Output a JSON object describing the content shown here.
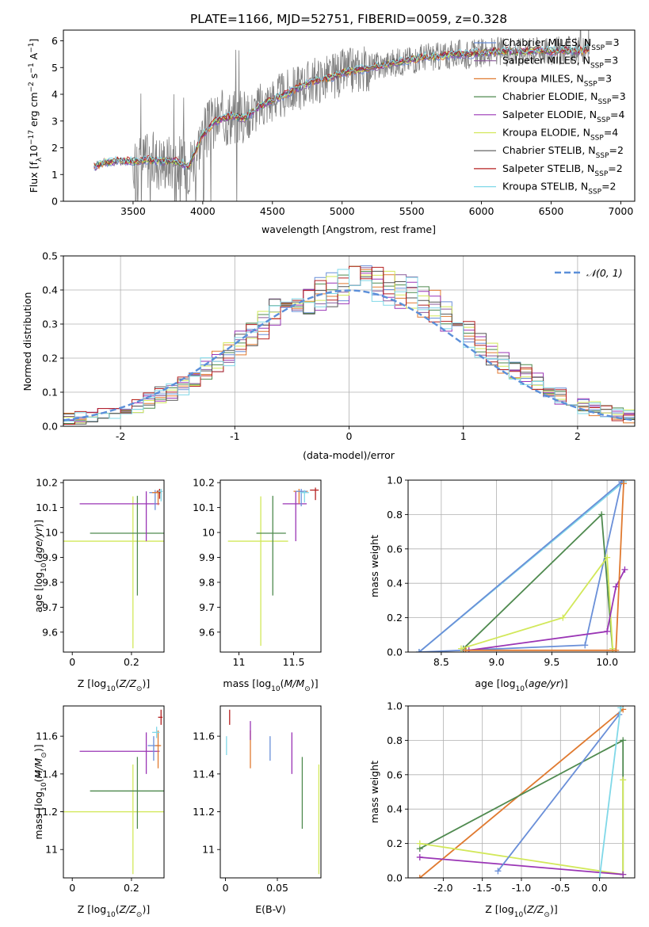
{
  "colors": {
    "Chabrier MILES": "#6a8fd8",
    "Salpeter MILES": "#8a5a9a",
    "Kroupa MILES": "#e07a30",
    "Chabrier ELODIE": "#4f8a4f",
    "Salpeter ELODIE": "#9a35b5",
    "Kroupa ELODIE": "#d2e85a",
    "Chabrier STELIB": "#555555",
    "Salpeter STELIB": "#b52020",
    "Kroupa STELIB": "#80d8e8",
    "data": "#808080",
    "normal": "#5b8fd9"
  },
  "chart_data": [
    {
      "id": "spectrum",
      "type": "line",
      "title": "PLATE=1166, MJD=52751, FIBERID=0059, z=0.328",
      "xlabel": "wavelength [Angstrom, rest frame]",
      "ylabel": "Flux [fλ10⁻¹⁷ erg cm⁻² s⁻¹ A⁻¹]",
      "xlim": [
        3000,
        7100
      ],
      "ylim": [
        0,
        6.4
      ],
      "xticks": [
        3500,
        4000,
        4500,
        5000,
        5500,
        6000,
        6500,
        7000
      ],
      "yticks": [
        0,
        1,
        2,
        3,
        4,
        5,
        6
      ],
      "legend_position": "upper right",
      "model_continuum": {
        "x": [
          3220,
          3300,
          3400,
          3500,
          3600,
          3700,
          3800,
          3900,
          3950,
          4000,
          4100,
          4200,
          4300,
          4400,
          4500,
          4600,
          4700,
          4800,
          4900,
          5000,
          5100,
          5200,
          5300,
          5400,
          5500,
          5600,
          5700,
          5800,
          5900,
          6000,
          6100,
          6200,
          6300,
          6400,
          6500,
          6600,
          6700,
          6780
        ],
        "y": [
          1.3,
          1.45,
          1.5,
          1.5,
          1.55,
          1.5,
          1.5,
          1.3,
          1.9,
          2.5,
          3.0,
          3.2,
          3.1,
          3.5,
          3.8,
          4.0,
          4.3,
          4.5,
          4.6,
          4.8,
          4.9,
          5.0,
          5.1,
          5.2,
          5.3,
          5.4,
          5.4,
          5.5,
          5.5,
          5.55,
          5.6,
          5.6,
          5.6,
          5.65,
          5.6,
          5.65,
          5.6,
          5.7
        ]
      },
      "series": [
        {
          "name": "Chabrier MILES, N$_{SSP}$=3",
          "label": "Chabrier MILES, N",
          "n": "3",
          "color_key": "Chabrier MILES"
        },
        {
          "name": "Salpeter MILES, N$_{SSP}$=3",
          "label": "Salpeter MILES, N",
          "n": "3",
          "color_key": "Salpeter MILES"
        },
        {
          "name": "Kroupa MILES, N$_{SSP}$=3",
          "label": "Kroupa MILES, N",
          "n": "3",
          "color_key": "Kroupa MILES"
        },
        {
          "name": "Chabrier ELODIE, N$_{SSP}$=3",
          "label": "Chabrier ELODIE, N",
          "n": "3",
          "color_key": "Chabrier ELODIE"
        },
        {
          "name": "Salpeter ELODIE, N$_{SSP}$=4",
          "label": "Salpeter ELODIE, N",
          "n": "4",
          "color_key": "Salpeter ELODIE"
        },
        {
          "name": "Kroupa ELODIE, N$_{SSP}$=4",
          "label": "Kroupa ELODIE, N",
          "n": "4",
          "color_key": "Kroupa ELODIE"
        },
        {
          "name": "Chabrier STELIB, N$_{SSP}$=2",
          "label": "Chabrier STELIB, N",
          "n": "2",
          "color_key": "Chabrier STELIB"
        },
        {
          "name": "Salpeter STELIB, N$_{SSP}$=2",
          "label": "Salpeter STELIB, N",
          "n": "2",
          "color_key": "Salpeter STELIB"
        },
        {
          "name": "Kroupa STELIB, N$_{SSP}$=2",
          "label": "Kroupa STELIB, N",
          "n": "2",
          "color_key": "Kroupa STELIB"
        }
      ]
    },
    {
      "id": "residuals",
      "type": "bar",
      "xlabel": "(data-model)/error",
      "ylabel": "Normed distribution",
      "xlim": [
        -2.5,
        2.5
      ],
      "ylim": [
        0,
        0.5
      ],
      "xticks": [
        -2,
        -1,
        0,
        1,
        2
      ],
      "yticks": [
        0.0,
        0.1,
        0.2,
        0.3,
        0.4,
        0.5
      ],
      "bin_width": 0.1,
      "grid": true,
      "legend": {
        "label": "𝒩(0, 1)",
        "position": "upper right"
      },
      "reference_curve": "normal distribution N(0,1), mean 0, sigma 1, peak 0.399",
      "histogram_envelope": {
        "x": [
          -2.5,
          -2.4,
          -2.3,
          -2.2,
          -2.1,
          -2.0,
          -1.9,
          -1.8,
          -1.7,
          -1.6,
          -1.5,
          -1.4,
          -1.3,
          -1.2,
          -1.1,
          -1.0,
          -0.9,
          -0.8,
          -0.7,
          -0.6,
          -0.5,
          -0.4,
          -0.3,
          -0.2,
          -0.1,
          0.0,
          0.1,
          0.2,
          0.3,
          0.4,
          0.5,
          0.6,
          0.7,
          0.8,
          0.9,
          1.0,
          1.1,
          1.2,
          1.3,
          1.4,
          1.5,
          1.6,
          1.7,
          1.8,
          1.9,
          2.0,
          2.1,
          2.2,
          2.3,
          2.4
        ],
        "y": [
          0.02,
          0.025,
          0.03,
          0.035,
          0.04,
          0.05,
          0.06,
          0.075,
          0.09,
          0.1,
          0.12,
          0.14,
          0.17,
          0.19,
          0.21,
          0.24,
          0.27,
          0.3,
          0.33,
          0.35,
          0.37,
          0.38,
          0.39,
          0.4,
          0.41,
          0.42,
          0.42,
          0.42,
          0.41,
          0.4,
          0.39,
          0.37,
          0.35,
          0.32,
          0.3,
          0.27,
          0.24,
          0.21,
          0.19,
          0.17,
          0.15,
          0.13,
          0.11,
          0.09,
          0.075,
          0.06,
          0.05,
          0.04,
          0.035,
          0.03
        ]
      }
    },
    {
      "id": "age-vs-z",
      "type": "scatter",
      "xlabel": "Z [log₁₀(Z/Z⊙)]",
      "ylabel": "age  [log₁₀(age/yr)]",
      "xlim": [
        -0.03,
        0.31
      ],
      "ylim": [
        9.52,
        10.21
      ],
      "xticks": [
        0.0,
        0.2
      ],
      "yticks": [
        9.6,
        9.7,
        9.8,
        9.9,
        10.0,
        10.1,
        10.2
      ],
      "errorbars": [
        {
          "series": "Kroupa ELODIE",
          "x": 0.205,
          "xerr": [
            0.3,
            0.3
          ],
          "y": 9.965,
          "yerr": [
            0.43,
            0.18
          ]
        },
        {
          "series": "Chabrier ELODIE",
          "x": 0.22,
          "xerr": [
            0.16,
            0.09
          ],
          "y": 9.997,
          "yerr": [
            0.25,
            0.15
          ]
        },
        {
          "series": "Salpeter ELODIE",
          "x": 0.25,
          "xerr": [
            0.225,
            0.045
          ],
          "y": 10.115,
          "yerr": [
            0.15,
            0.05
          ]
        },
        {
          "series": "Chabrier MILES",
          "x": 0.28,
          "xerr": [
            0.02,
            0.02
          ],
          "y": 10.16,
          "yerr": [
            0.07,
            0.01
          ]
        },
        {
          "series": "Kroupa MILES",
          "x": 0.29,
          "xerr": [
            0.02,
            0.01
          ],
          "y": 10.16,
          "yerr": [
            0.05,
            0.01
          ]
        },
        {
          "series": "Salpeter STELIB",
          "x": 0.295,
          "xerr": [
            0.01,
            0.01
          ],
          "y": 10.165,
          "yerr": [
            0.03,
            0.01
          ]
        },
        {
          "series": "Kroupa STELIB",
          "x": 0.3,
          "xerr": [
            0.01,
            0.005
          ],
          "y": 10.165,
          "yerr": [
            0.04,
            0.01
          ]
        }
      ]
    },
    {
      "id": "age-vs-mass",
      "type": "scatter",
      "xlabel": "mass [log₁₀(M/M⊙)]",
      "ylabel": "",
      "xlim": [
        10.83,
        11.75
      ],
      "ylim": [
        9.52,
        10.21
      ],
      "xticks": [
        11.0,
        11.5
      ],
      "yticks": [
        9.6,
        9.7,
        9.8,
        9.9,
        10.0,
        10.1,
        10.2
      ],
      "errorbars": [
        {
          "series": "Kroupa ELODIE",
          "x": 11.2,
          "xerr": [
            0.3,
            0.25
          ],
          "y": 9.965,
          "yerr": [
            0.42,
            0.18
          ]
        },
        {
          "series": "Chabrier ELODIE",
          "x": 11.31,
          "xerr": [
            0.15,
            0.12
          ],
          "y": 9.997,
          "yerr": [
            0.25,
            0.15
          ]
        },
        {
          "series": "Salpeter ELODIE",
          "x": 11.52,
          "xerr": [
            0.12,
            0.1
          ],
          "y": 10.115,
          "yerr": [
            0.15,
            0.05
          ]
        },
        {
          "series": "Kroupa MILES",
          "x": 11.55,
          "xerr": [
            0.05,
            0.08
          ],
          "y": 10.165,
          "yerr": [
            0.05,
            0.01
          ]
        },
        {
          "series": "Chabrier MILES",
          "x": 11.57,
          "xerr": [
            0.05,
            0.05
          ],
          "y": 10.165,
          "yerr": [
            0.06,
            0.01
          ]
        },
        {
          "series": "Salpeter STELIB",
          "x": 11.7,
          "xerr": [
            0.05,
            0.03
          ],
          "y": 10.17,
          "yerr": [
            0.04,
            0.01
          ]
        },
        {
          "series": "Kroupa STELIB",
          "x": 11.6,
          "xerr": [
            0.04,
            0.04
          ],
          "y": 10.16,
          "yerr": [
            0.04,
            0.01
          ]
        }
      ]
    },
    {
      "id": "mass-weight-vs-age",
      "type": "line",
      "xlabel": "age  [log₁₀(age/yr)]",
      "ylabel": "mass weight",
      "xlim": [
        8.2,
        10.25
      ],
      "ylim": [
        0.0,
        1.0
      ],
      "xticks": [
        8.5,
        9.0,
        9.5,
        10.0
      ],
      "yticks": [
        0.0,
        0.2,
        0.4,
        0.6,
        0.8,
        1.0
      ],
      "grid": true,
      "series": [
        {
          "name": "Kroupa STELIB",
          "points": [
            [
              8.3,
              0.0
            ],
            [
              10.15,
              0.99
            ]
          ]
        },
        {
          "name": "Chabrier MILES",
          "points": [
            [
              8.3,
              0.0
            ],
            [
              10.13,
              0.99
            ],
            [
              9.8,
              0.04
            ],
            [
              8.3,
              0.0
            ]
          ]
        },
        {
          "name": "Chabrier ELODIE",
          "points": [
            [
              8.7,
              0.02
            ],
            [
              9.95,
              0.8
            ],
            [
              10.05,
              0.01
            ]
          ]
        },
        {
          "name": "Kroupa ELODIE",
          "points": [
            [
              8.68,
              0.02
            ],
            [
              9.6,
              0.2
            ],
            [
              10.0,
              0.55
            ],
            [
              10.05,
              0.02
            ]
          ]
        },
        {
          "name": "Salpeter ELODIE",
          "points": [
            [
              8.75,
              0.01
            ],
            [
              10.0,
              0.12
            ],
            [
              10.08,
              0.38
            ],
            [
              10.16,
              0.48
            ]
          ]
        },
        {
          "name": "Kroupa MILES",
          "points": [
            [
              8.72,
              0.01
            ],
            [
              10.08,
              0.01
            ],
            [
              10.15,
              0.98
            ]
          ]
        }
      ]
    },
    {
      "id": "mass-vs-z",
      "type": "scatter",
      "xlabel": "Z [log₁₀(Z/Z⊙)]",
      "ylabel": "mass [log₁₀(M/M⊙)]",
      "xlim": [
        -0.03,
        0.31
      ],
      "ylim": [
        10.85,
        11.76
      ],
      "xticks": [
        0.0,
        0.2
      ],
      "yticks": [
        11.0,
        11.2,
        11.4,
        11.6
      ],
      "errorbars": [
        {
          "series": "Kroupa ELODIE",
          "x": 0.205,
          "xerr": [
            0.3,
            0.3
          ],
          "y": 11.2,
          "yerr": [
            0.33,
            0.25
          ]
        },
        {
          "series": "Chabrier ELODIE",
          "x": 0.22,
          "xerr": [
            0.16,
            0.09
          ],
          "y": 11.31,
          "yerr": [
            0.2,
            0.18
          ]
        },
        {
          "series": "Salpeter ELODIE",
          "x": 0.25,
          "xerr": [
            0.225,
            0.045
          ],
          "y": 11.52,
          "yerr": [
            0.12,
            0.1
          ]
        },
        {
          "series": "Chabrier MILES",
          "x": 0.275,
          "xerr": [
            0.02,
            0.02
          ],
          "y": 11.55,
          "yerr": [
            0.08,
            0.05
          ]
        },
        {
          "series": "Kroupa MILES",
          "x": 0.29,
          "xerr": [
            0.01,
            0.01
          ],
          "y": 11.55,
          "yerr": [
            0.12,
            0.08
          ]
        },
        {
          "series": "Salpeter STELIB",
          "x": 0.3,
          "xerr": [
            0.01,
            0.005
          ],
          "y": 11.7,
          "yerr": [
            0.04,
            0.04
          ]
        },
        {
          "series": "Kroupa STELIB",
          "x": 0.285,
          "xerr": [
            0.015,
            0.01
          ],
          "y": 11.62,
          "yerr": [
            0.03,
            0.03
          ]
        }
      ]
    },
    {
      "id": "mass-vs-ebv",
      "type": "scatter",
      "xlabel": "E(B-V)",
      "ylabel": "",
      "xlim": [
        -0.005,
        0.092
      ],
      "ylim": [
        10.85,
        11.76
      ],
      "xticks": [
        0.0,
        0.05
      ],
      "yticks": [
        11.0,
        11.2,
        11.4,
        11.6
      ],
      "errorbars": [
        {
          "series": "Kroupa ELODIE",
          "x": 0.09,
          "y": 11.2,
          "yerr": [
            0.33,
            0.25
          ]
        },
        {
          "series": "Chabrier ELODIE",
          "x": 0.074,
          "y": 11.31,
          "yerr": [
            0.2,
            0.18
          ]
        },
        {
          "series": "Salpeter ELODIE",
          "x": 0.064,
          "y": 11.52,
          "yerr": [
            0.12,
            0.1
          ]
        },
        {
          "series": "Chabrier MILES",
          "x": 0.043,
          "y": 11.55,
          "yerr": [
            0.08,
            0.05
          ]
        },
        {
          "series": "Kroupa MILES",
          "x": 0.024,
          "y": 11.55,
          "yerr": [
            0.12,
            0.08
          ]
        },
        {
          "series": "Salpeter ELODIE",
          "x": 0.024,
          "y": 11.63,
          "yerr": [
            0.05,
            0.05
          ]
        },
        {
          "series": "Salpeter STELIB",
          "x": 0.004,
          "y": 11.7,
          "yerr": [
            0.04,
            0.04
          ]
        },
        {
          "series": "Kroupa STELIB",
          "x": 0.001,
          "y": 11.55,
          "yerr": [
            0.05,
            0.05
          ]
        }
      ]
    },
    {
      "id": "mass-weight-vs-z",
      "type": "line",
      "xlabel": "Z [log₁₀(Z/Z⊙)]",
      "ylabel": "mass weight",
      "xlim": [
        -2.45,
        0.45
      ],
      "ylim": [
        0.0,
        1.0
      ],
      "xticks": [
        -2.0,
        -1.5,
        -1.0,
        -0.5,
        0.0
      ],
      "yticks": [
        0.0,
        0.2,
        0.4,
        0.6,
        0.8,
        1.0
      ],
      "grid": true,
      "series": [
        {
          "name": "Kroupa MILES",
          "points": [
            [
              -2.3,
              0.0
            ],
            [
              0.3,
              0.98
            ]
          ]
        },
        {
          "name": "Chabrier ELODIE",
          "points": [
            [
              -2.3,
              0.17
            ],
            [
              0.3,
              0.8
            ],
            [
              0.3,
              0.02
            ]
          ]
        },
        {
          "name": "Kroupa ELODIE",
          "points": [
            [
              -2.3,
              0.2
            ],
            [
              0.3,
              0.02
            ],
            [
              0.3,
              0.57
            ]
          ]
        },
        {
          "name": "Salpeter ELODIE",
          "points": [
            [
              -2.3,
              0.12
            ],
            [
              0.3,
              0.02
            ]
          ]
        },
        {
          "name": "Chabrier MILES",
          "points": [
            [
              -1.3,
              0.04
            ],
            [
              0.25,
              0.95
            ]
          ]
        },
        {
          "name": "Kroupa STELIB",
          "points": [
            [
              0.0,
              0.0
            ],
            [
              0.27,
              0.99
            ]
          ]
        }
      ]
    }
  ]
}
